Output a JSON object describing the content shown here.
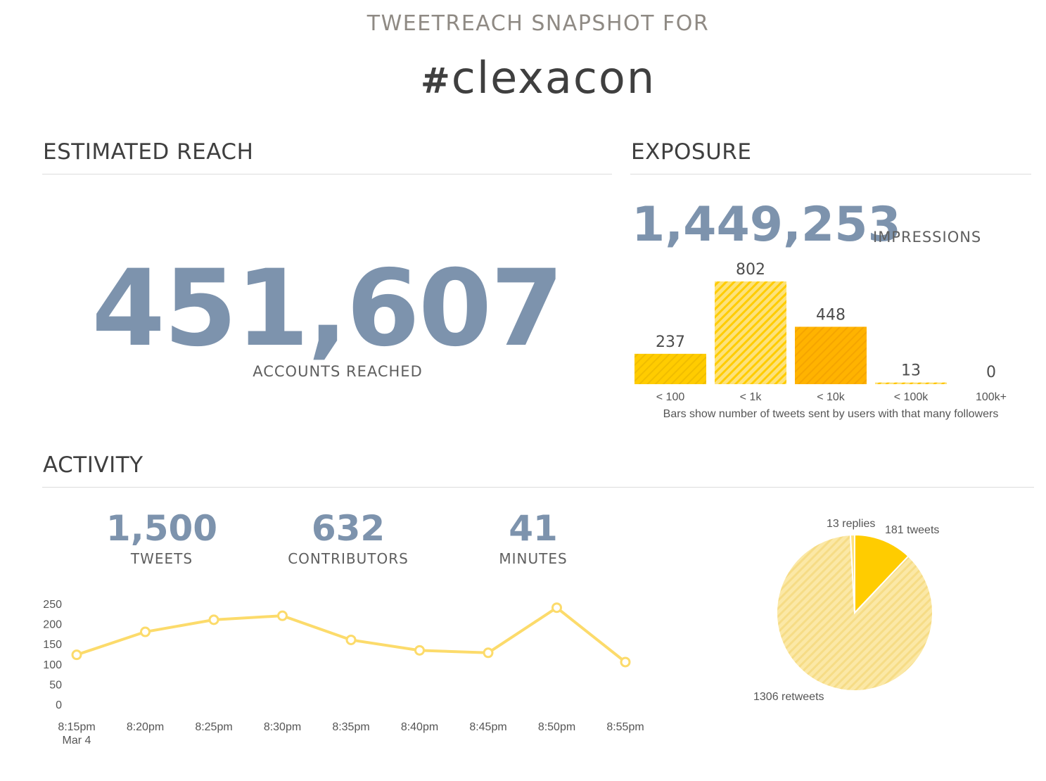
{
  "header": {
    "subtitle": "TWEETREACH SNAPSHOT FOR",
    "hashtag_symbol": "#",
    "hashtag_text": "clexacon"
  },
  "estimated_reach": {
    "title": "ESTIMATED REACH",
    "value": "451,607",
    "label": "ACCOUNTS REACHED"
  },
  "exposure": {
    "title": "EXPOSURE",
    "impressions_value": "1,449,253",
    "impressions_label": "IMPRESSIONS",
    "note": "Bars show number of tweets sent by users with that many followers"
  },
  "activity": {
    "title": "ACTIVITY",
    "stats": [
      {
        "value": "1,500",
        "label": "TWEETS"
      },
      {
        "value": "632",
        "label": "CONTRIBUTORS"
      },
      {
        "value": "41",
        "label": "MINUTES"
      }
    ]
  },
  "colors": {
    "accent_blue": "#7d93ad",
    "yellow": "#ffcc00",
    "yellow_light": "#ffe27a",
    "orange": "#ffb300",
    "line_yellow": "#fcdb6b",
    "pie_light": "#fbe8a6"
  },
  "chart_data": [
    {
      "type": "bar",
      "categories": [
        "< 100",
        "< 1k",
        "< 10k",
        "< 100k",
        "100k+"
      ],
      "values": [
        237,
        802,
        448,
        13,
        0
      ],
      "value_labels": [
        "237",
        "802",
        "448",
        "13",
        "0"
      ],
      "ylim": [
        0,
        802
      ]
    },
    {
      "type": "line",
      "x": [
        "8:15pm",
        "8:20pm",
        "8:25pm",
        "8:30pm",
        "8:35pm",
        "8:40pm",
        "8:45pm",
        "8:50pm",
        "8:55pm"
      ],
      "x_sublabel": "Mar 4",
      "series": [
        {
          "values": [
            123,
            180,
            210,
            220,
            160,
            134,
            128,
            240,
            105
          ]
        }
      ],
      "yticks": [
        "0",
        "50",
        "100",
        "150",
        "200",
        "250"
      ],
      "ylim": [
        0,
        250
      ],
      "grid": false
    },
    {
      "type": "pie",
      "slices": [
        {
          "label": "181 tweets",
          "value": 181
        },
        {
          "label": "1306 retweets",
          "value": 1306
        },
        {
          "label": "13 replies",
          "value": 13
        }
      ]
    }
  ]
}
